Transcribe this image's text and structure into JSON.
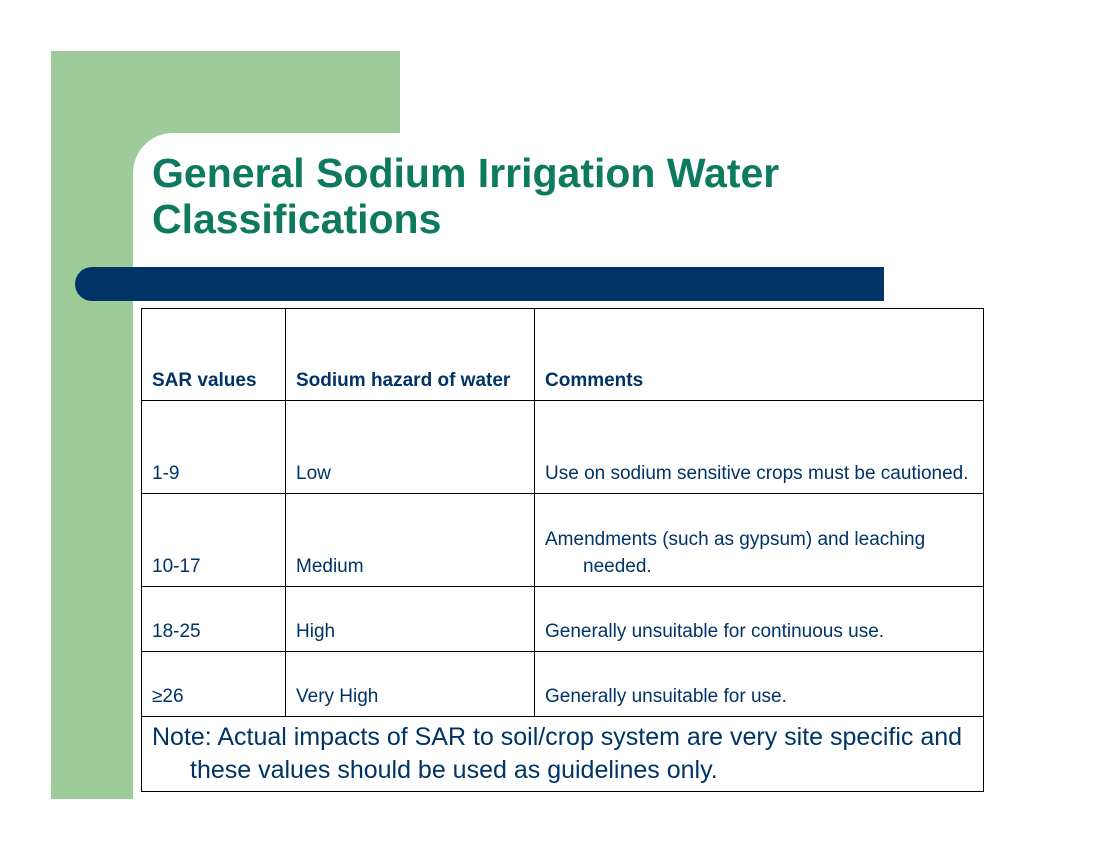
{
  "slide": {
    "title": "General Sodium Irrigation Water Classifications",
    "colors": {
      "title": "#0d7a5f",
      "bar": "#003366",
      "green_block": "#9dcc9a",
      "text": "#003366"
    }
  },
  "table": {
    "headers": [
      "SAR values",
      "Sodium hazard of water",
      "Comments"
    ],
    "rows": [
      {
        "sar": "1-9",
        "hazard": "Low",
        "comment": "Use on sodium sensitive crops must be cautioned."
      },
      {
        "sar": "10-17",
        "hazard": "Medium",
        "comment": "Amendments (such as gypsum) and leaching needed."
      },
      {
        "sar": "18-25",
        "hazard": "High",
        "comment": "Generally unsuitable for continuous use."
      },
      {
        "sar": "≥26",
        "hazard": "Very High",
        "comment": "Generally unsuitable for use."
      }
    ],
    "note": "Note:  Actual impacts of SAR to soil/crop system are very site specific and these values should be used as guidelines only."
  }
}
